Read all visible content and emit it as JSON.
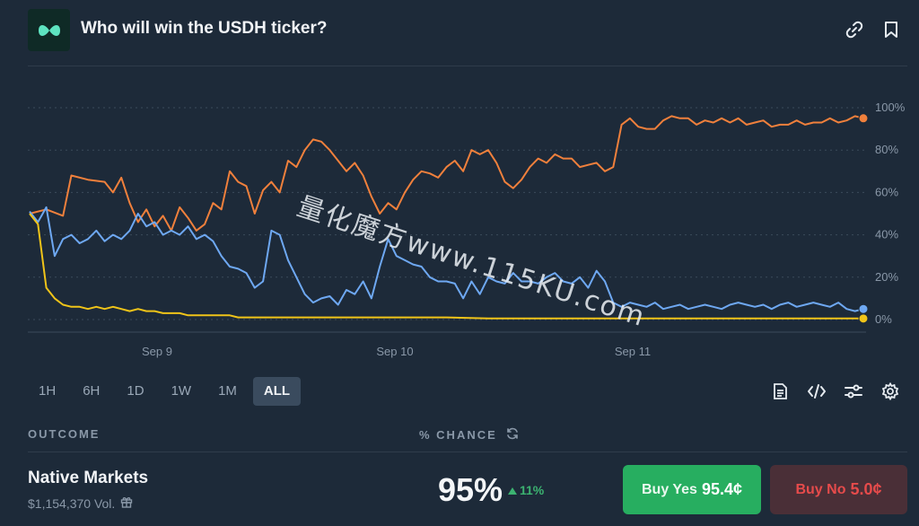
{
  "header": {
    "title": "Who will win the USDH ticker?",
    "icons": [
      "logo-icon",
      "link-icon",
      "bookmark-icon"
    ]
  },
  "chart_data": {
    "type": "line",
    "x_tick_labels": [
      "Sep 9",
      "Sep 10",
      "Sep 11"
    ],
    "y_tick_labels": [
      "100%",
      "80%",
      "60%",
      "40%",
      "20%",
      "0%"
    ],
    "ylim": [
      0,
      100
    ],
    "grid": true,
    "x_range": [
      0,
      100
    ],
    "series": [
      {
        "color": "#f0803c",
        "values": [
          [
            0,
            50
          ],
          [
            2,
            52
          ],
          [
            4,
            49
          ],
          [
            5,
            68
          ],
          [
            7,
            66
          ],
          [
            9,
            65
          ],
          [
            10,
            60
          ],
          [
            11,
            67
          ],
          [
            12,
            55
          ],
          [
            13,
            46
          ],
          [
            14,
            52
          ],
          [
            15,
            44
          ],
          [
            16,
            49
          ],
          [
            17,
            42
          ],
          [
            18,
            53
          ],
          [
            19,
            48
          ],
          [
            20,
            42
          ],
          [
            21,
            45
          ],
          [
            22,
            55
          ],
          [
            23,
            52
          ],
          [
            24,
            70
          ],
          [
            25,
            65
          ],
          [
            26,
            63
          ],
          [
            27,
            50
          ],
          [
            28,
            61
          ],
          [
            29,
            65
          ],
          [
            30,
            60
          ],
          [
            31,
            75
          ],
          [
            32,
            72
          ],
          [
            33,
            80
          ],
          [
            34,
            85
          ],
          [
            35,
            84
          ],
          [
            36,
            80
          ],
          [
            37,
            75
          ],
          [
            38,
            70
          ],
          [
            39,
            74
          ],
          [
            40,
            68
          ],
          [
            41,
            58
          ],
          [
            42,
            50
          ],
          [
            43,
            55
          ],
          [
            44,
            52
          ],
          [
            45,
            60
          ],
          [
            46,
            66
          ],
          [
            47,
            70
          ],
          [
            48,
            69
          ],
          [
            49,
            67
          ],
          [
            50,
            72
          ],
          [
            51,
            75
          ],
          [
            52,
            70
          ],
          [
            53,
            80
          ],
          [
            54,
            78
          ],
          [
            55,
            80
          ],
          [
            56,
            74
          ],
          [
            57,
            65
          ],
          [
            58,
            62
          ],
          [
            59,
            66
          ],
          [
            60,
            72
          ],
          [
            61,
            76
          ],
          [
            62,
            74
          ],
          [
            63,
            78
          ],
          [
            64,
            76
          ],
          [
            65,
            76
          ],
          [
            66,
            72
          ],
          [
            67,
            73
          ],
          [
            68,
            74
          ],
          [
            69,
            70
          ],
          [
            70,
            72
          ],
          [
            71,
            92
          ],
          [
            72,
            95
          ],
          [
            73,
            91
          ],
          [
            74,
            90
          ],
          [
            75,
            90
          ],
          [
            76,
            94
          ],
          [
            77,
            96
          ],
          [
            78,
            95
          ],
          [
            79,
            95
          ],
          [
            80,
            92
          ],
          [
            81,
            94
          ],
          [
            82,
            93
          ],
          [
            83,
            95
          ],
          [
            84,
            93
          ],
          [
            85,
            95
          ],
          [
            86,
            92
          ],
          [
            87,
            93
          ],
          [
            88,
            94
          ],
          [
            89,
            91
          ],
          [
            90,
            92
          ],
          [
            91,
            92
          ],
          [
            92,
            94
          ],
          [
            93,
            92
          ],
          [
            94,
            93
          ],
          [
            95,
            93
          ],
          [
            96,
            95
          ],
          [
            97,
            93
          ],
          [
            98,
            94
          ],
          [
            99,
            96
          ],
          [
            100,
            95
          ]
        ]
      },
      {
        "color": "#6ea8f2",
        "values": [
          [
            0,
            51
          ],
          [
            1,
            46
          ],
          [
            2,
            53
          ],
          [
            3,
            30
          ],
          [
            4,
            38
          ],
          [
            5,
            40
          ],
          [
            6,
            36
          ],
          [
            7,
            38
          ],
          [
            8,
            42
          ],
          [
            9,
            37
          ],
          [
            10,
            40
          ],
          [
            11,
            38
          ],
          [
            12,
            42
          ],
          [
            13,
            50
          ],
          [
            14,
            44
          ],
          [
            15,
            46
          ],
          [
            16,
            40
          ],
          [
            17,
            42
          ],
          [
            18,
            40
          ],
          [
            19,
            44
          ],
          [
            20,
            38
          ],
          [
            21,
            40
          ],
          [
            22,
            37
          ],
          [
            23,
            30
          ],
          [
            24,
            25
          ],
          [
            25,
            24
          ],
          [
            26,
            22
          ],
          [
            27,
            15
          ],
          [
            28,
            18
          ],
          [
            29,
            42
          ],
          [
            30,
            40
          ],
          [
            31,
            28
          ],
          [
            32,
            20
          ],
          [
            33,
            12
          ],
          [
            34,
            8
          ],
          [
            35,
            10
          ],
          [
            36,
            11
          ],
          [
            37,
            7
          ],
          [
            38,
            14
          ],
          [
            39,
            12
          ],
          [
            40,
            18
          ],
          [
            41,
            10
          ],
          [
            42,
            25
          ],
          [
            43,
            38
          ],
          [
            44,
            30
          ],
          [
            45,
            28
          ],
          [
            46,
            26
          ],
          [
            47,
            25
          ],
          [
            48,
            20
          ],
          [
            49,
            18
          ],
          [
            50,
            18
          ],
          [
            51,
            17
          ],
          [
            52,
            10
          ],
          [
            53,
            18
          ],
          [
            54,
            12
          ],
          [
            55,
            20
          ],
          [
            56,
            18
          ],
          [
            57,
            17
          ],
          [
            58,
            22
          ],
          [
            59,
            18
          ],
          [
            60,
            18
          ],
          [
            61,
            17
          ],
          [
            62,
            20
          ],
          [
            63,
            22
          ],
          [
            64,
            18
          ],
          [
            65,
            17
          ],
          [
            66,
            20
          ],
          [
            67,
            15
          ],
          [
            68,
            23
          ],
          [
            69,
            18
          ],
          [
            70,
            8
          ],
          [
            71,
            6
          ],
          [
            72,
            8
          ],
          [
            73,
            7
          ],
          [
            74,
            6
          ],
          [
            75,
            8
          ],
          [
            76,
            5
          ],
          [
            77,
            6
          ],
          [
            78,
            7
          ],
          [
            79,
            5
          ],
          [
            80,
            6
          ],
          [
            81,
            7
          ],
          [
            82,
            6
          ],
          [
            83,
            5
          ],
          [
            84,
            7
          ],
          [
            85,
            8
          ],
          [
            86,
            7
          ],
          [
            87,
            6
          ],
          [
            88,
            7
          ],
          [
            89,
            5
          ],
          [
            90,
            7
          ],
          [
            91,
            8
          ],
          [
            92,
            6
          ],
          [
            93,
            7
          ],
          [
            94,
            8
          ],
          [
            95,
            7
          ],
          [
            96,
            6
          ],
          [
            97,
            8
          ],
          [
            98,
            5
          ],
          [
            99,
            4
          ],
          [
            100,
            5
          ]
        ]
      },
      {
        "color": "#f0c419",
        "values": [
          [
            0,
            50
          ],
          [
            1,
            45
          ],
          [
            2,
            15
          ],
          [
            3,
            10
          ],
          [
            4,
            7
          ],
          [
            5,
            6
          ],
          [
            6,
            6
          ],
          [
            7,
            5
          ],
          [
            8,
            6
          ],
          [
            9,
            5
          ],
          [
            10,
            6
          ],
          [
            11,
            5
          ],
          [
            12,
            4
          ],
          [
            13,
            5
          ],
          [
            14,
            4
          ],
          [
            15,
            4
          ],
          [
            16,
            3
          ],
          [
            17,
            3
          ],
          [
            18,
            3
          ],
          [
            19,
            2
          ],
          [
            20,
            2
          ],
          [
            21,
            2
          ],
          [
            22,
            2
          ],
          [
            23,
            2
          ],
          [
            24,
            2
          ],
          [
            25,
            1
          ],
          [
            26,
            1
          ],
          [
            27,
            1
          ],
          [
            28,
            1
          ],
          [
            29,
            1
          ],
          [
            30,
            1
          ],
          [
            35,
            1
          ],
          [
            40,
            1
          ],
          [
            45,
            1
          ],
          [
            50,
            1
          ],
          [
            55,
            0.5
          ],
          [
            60,
            0.5
          ],
          [
            65,
            0.5
          ],
          [
            70,
            0.5
          ],
          [
            75,
            0.5
          ],
          [
            80,
            0.5
          ],
          [
            85,
            0.5
          ],
          [
            90,
            0.5
          ],
          [
            95,
            0.5
          ],
          [
            100,
            0.5
          ]
        ]
      }
    ]
  },
  "time_ranges": {
    "items": [
      "1H",
      "6H",
      "1D",
      "1W",
      "1M",
      "ALL"
    ],
    "selected": "ALL"
  },
  "chart_tools": [
    "document-icon",
    "code-icon",
    "sliders-icon",
    "gear-icon"
  ],
  "table": {
    "outcome_header": "OUTCOME",
    "chance_header": "% CHANCE"
  },
  "outcome": {
    "name": "Native Markets",
    "volume": "$1,154,370 Vol.",
    "chance": "95%",
    "delta": "11%",
    "buy_yes_label": "Buy Yes",
    "buy_yes_price": "95.4¢",
    "buy_no_label": "Buy No",
    "buy_no_price": "5.0¢"
  },
  "watermark": "量化魔方www.115KU.com",
  "colors": {
    "background": "#1d2a39",
    "accent_green": "#27ae60",
    "accent_red": "#e64b4b"
  }
}
